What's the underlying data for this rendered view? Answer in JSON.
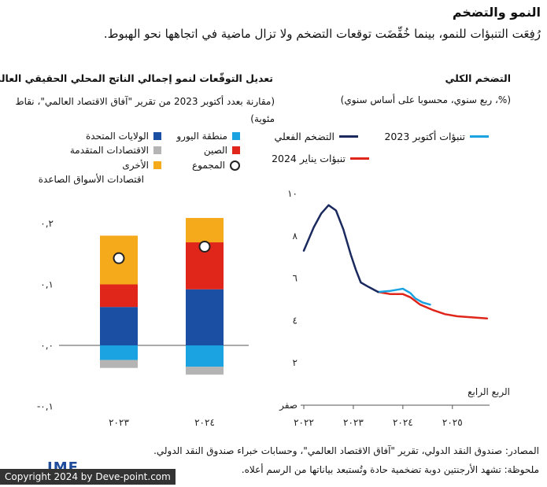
{
  "header": {
    "title": "النمو والتضخم",
    "subtitle": "رُفِعَت التنبؤات للنمو، بينما خُفِّضَت توقعات التضخم ولا تزال ماضية في اتجاهها نحو الهبوط."
  },
  "left_panel": {
    "title": "تعديل التوقّعات لنمو إجمالي الناتج المحلي الحقيقي العالمي",
    "subtitle": "(مقارنة بعدد أكتوبر 2023 من تقرير \"آفاق الاقتصاد العالمي\"، نقاط مئوية)",
    "legend": [
      {
        "label": "منطقة اليورو",
        "color": "#1aa3e0"
      },
      {
        "label": "الولايات المتحدة",
        "color": "#1b4fa3"
      },
      {
        "label": "الصين",
        "color": "#e0251b"
      },
      {
        "label": "الاقتصادات المتقدمة",
        "color": "#b4b4b4"
      },
      {
        "label": "المجموع",
        "marker": "circle"
      },
      {
        "label": "الأخرى",
        "color": "#f5aa1c"
      },
      {
        "label": "اقتصادات الأسواق الصاعدة",
        "color": ""
      }
    ]
  },
  "right_panel": {
    "title": "التضخم الكلي",
    "subtitle": "(%، ربع سنوي، محسوبا على أساس سنوي)",
    "legend": [
      {
        "label": "التضخم الفعلي",
        "color": "#1b2a5e"
      },
      {
        "label": "تنبؤات أكتوبر 2023",
        "color": "#1aa3e0"
      },
      {
        "label": "تنبؤات يناير 2024",
        "color": "#e0251b"
      }
    ]
  },
  "footer": {
    "sources": "المصادر: صندوق النقد الدولي، تقرير \"آفاق الاقتصاد العالمي\"، وحسابات خبراء صندوق النقد الدولي.",
    "note": "ملحوظة: تشهد الأرجنتين دوبة تضخمية حادة وتُستبعد بياناتها من الرسم أعلاه.",
    "logo": "IMF",
    "copyright": "Copyright 2024 by Deve-point.com"
  },
  "chart_data": [
    {
      "type": "bar",
      "stacked": true,
      "categories": [
        "٢٠٢٣",
        "٢٠٢٤"
      ],
      "y_tick_labels": [
        "٠,٢",
        "٠,١",
        "٠,٠",
        "-٠,١"
      ],
      "y_ticks": [
        0.2,
        0.1,
        0.0,
        -0.1
      ],
      "ylim": [
        -0.1,
        0.2
      ],
      "series": [
        {
          "name": "الولايات المتحدة",
          "color": "#1b4fa3",
          "values": [
            0.063,
            0.092
          ]
        },
        {
          "name": "الصين",
          "color": "#e0251b",
          "values": [
            0.037,
            0.077
          ]
        },
        {
          "name": "الأخرى",
          "color": "#f5aa1c",
          "values": [
            0.08,
            0.04
          ]
        },
        {
          "name": "منطقة اليورو",
          "color": "#1aa3e0",
          "values": [
            -0.024,
            -0.035
          ]
        },
        {
          "name": "الاقتصادات المتقدمة",
          "color": "#b4b4b4",
          "values": [
            -0.013,
            -0.013
          ]
        }
      ],
      "totals": [
        0.143,
        0.162
      ],
      "grid": false
    },
    {
      "type": "line",
      "x_tick_labels": [
        "٢٠٢٢",
        "٢٠٢٣",
        "٢٠٢٤",
        "٢٠٢٥"
      ],
      "x_ticks": [
        2022,
        2023,
        2024,
        2025
      ],
      "xlim": [
        2022,
        2025.75
      ],
      "xlabel": "الربع الرابع",
      "y_tick_labels": [
        "صفر",
        "٢",
        "٤",
        "٦",
        "٨",
        "١٠"
      ],
      "y_ticks": [
        0,
        2,
        4,
        6,
        8,
        10
      ],
      "ylim": [
        0,
        10
      ],
      "series": [
        {
          "name": "التضخم الفعلي",
          "color": "#1b2a5e",
          "points": [
            [
              2022.0,
              7.3
            ],
            [
              2022.2,
              8.4
            ],
            [
              2022.35,
              9.05
            ],
            [
              2022.5,
              9.45
            ],
            [
              2022.65,
              9.2
            ],
            [
              2022.8,
              8.3
            ],
            [
              2022.95,
              7.1
            ],
            [
              2023.05,
              6.4
            ],
            [
              2023.15,
              5.8
            ],
            [
              2023.3,
              5.6
            ],
            [
              2023.5,
              5.35
            ]
          ]
        },
        {
          "name": "تنبؤات أكتوبر 2023",
          "color": "#1aa3e0",
          "points": [
            [
              2023.5,
              5.35
            ],
            [
              2023.75,
              5.4
            ],
            [
              2024.0,
              5.5
            ],
            [
              2024.15,
              5.3
            ],
            [
              2024.25,
              5.05
            ],
            [
              2024.4,
              4.85
            ],
            [
              2024.55,
              4.75
            ]
          ]
        },
        {
          "name": "تنبؤات يناير 2024",
          "color": "#e0251b",
          "points": [
            [
              2023.5,
              5.35
            ],
            [
              2023.75,
              5.25
            ],
            [
              2024.0,
              5.25
            ],
            [
              2024.15,
              5.1
            ],
            [
              2024.35,
              4.75
            ],
            [
              2024.6,
              4.5
            ],
            [
              2024.85,
              4.3
            ],
            [
              2025.1,
              4.2
            ],
            [
              2025.4,
              4.15
            ],
            [
              2025.7,
              4.1
            ]
          ]
        }
      ],
      "grid": false
    }
  ]
}
